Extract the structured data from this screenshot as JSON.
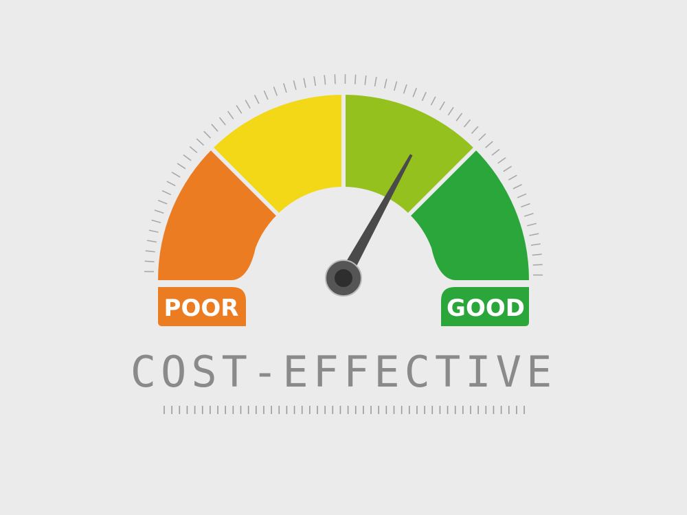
{
  "gauge": {
    "value_fraction": 0.66,
    "segments": [
      {
        "color": "#ec7c22"
      },
      {
        "color": "#f2d816"
      },
      {
        "color": "#95c11f"
      },
      {
        "color": "#2aa63a"
      }
    ],
    "poor_label": "POOR",
    "good_label": "GOOD",
    "needle_color": "#4a4a4a"
  },
  "title": "COST-EFFECTIVE"
}
